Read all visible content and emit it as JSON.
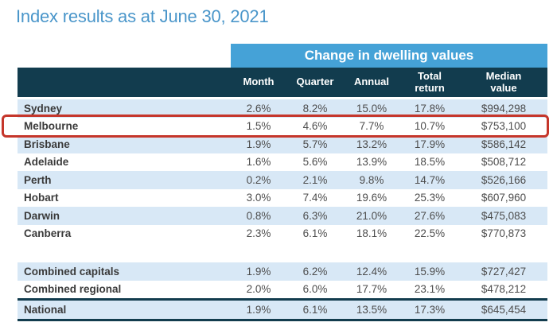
{
  "page": {
    "title": "Index results as at June 30, 2021"
  },
  "table": {
    "banner": "Change in dwelling values",
    "headers": {
      "region": "",
      "month": "Month",
      "quarter": "Quarter",
      "annual": "Annual",
      "total_return": "Total\nreturn",
      "median_value": "Median\nvalue"
    },
    "rows": [
      {
        "name": "Sydney",
        "month": "2.6%",
        "quarter": "8.2%",
        "annual": "15.0%",
        "total_return": "17.8%",
        "median_value": "$994,298"
      },
      {
        "name": "Melbourne",
        "month": "1.5%",
        "quarter": "4.6%",
        "annual": "7.7%",
        "total_return": "10.7%",
        "median_value": "$753,100"
      },
      {
        "name": "Brisbane",
        "month": "1.9%",
        "quarter": "5.7%",
        "annual": "13.2%",
        "total_return": "17.9%",
        "median_value": "$586,142"
      },
      {
        "name": "Adelaide",
        "month": "1.6%",
        "quarter": "5.6%",
        "annual": "13.9%",
        "total_return": "18.5%",
        "median_value": "$508,712"
      },
      {
        "name": "Perth",
        "month": "0.2%",
        "quarter": "2.1%",
        "annual": "9.8%",
        "total_return": "14.7%",
        "median_value": "$526,166"
      },
      {
        "name": "Hobart",
        "month": "3.0%",
        "quarter": "7.4%",
        "annual": "19.6%",
        "total_return": "25.3%",
        "median_value": "$607,960"
      },
      {
        "name": "Darwin",
        "month": "0.8%",
        "quarter": "6.3%",
        "annual": "21.0%",
        "total_return": "27.6%",
        "median_value": "$475,083"
      },
      {
        "name": "Canberra",
        "month": "2.3%",
        "quarter": "6.1%",
        "annual": "18.1%",
        "total_return": "22.5%",
        "median_value": "$770,873"
      },
      {
        "name": "Combined capitals",
        "month": "1.9%",
        "quarter": "6.2%",
        "annual": "12.4%",
        "total_return": "15.9%",
        "median_value": "$727,427"
      },
      {
        "name": "Combined regional",
        "month": "2.0%",
        "quarter": "6.0%",
        "annual": "17.7%",
        "total_return": "23.1%",
        "median_value": "$478,212"
      },
      {
        "name": "National",
        "month": "1.9%",
        "quarter": "6.1%",
        "annual": "13.5%",
        "total_return": "17.3%",
        "median_value": "$645,454"
      }
    ],
    "highlighted_row": "Melbourne"
  },
  "colors": {
    "title_blue": "#4a96ca",
    "banner_blue": "#45a2d7",
    "header_navy": "#123c4e",
    "row_alt_blue": "#d8e8f6",
    "highlight_red": "#c5362b"
  },
  "chart_data": {
    "type": "table",
    "title": "Index results as at June 30, 2021",
    "group_header": "Change in dwelling values (spans Month, Quarter, Annual, Total return, Median value)",
    "columns": [
      "Month",
      "Quarter",
      "Annual",
      "Total return",
      "Median value"
    ],
    "rows": [
      {
        "region": "Sydney",
        "month_pct": 2.6,
        "quarter_pct": 8.2,
        "annual_pct": 15.0,
        "total_return_pct": 17.8,
        "median_value": 994298
      },
      {
        "region": "Melbourne",
        "month_pct": 1.5,
        "quarter_pct": 4.6,
        "annual_pct": 7.7,
        "total_return_pct": 10.7,
        "median_value": 753100
      },
      {
        "region": "Brisbane",
        "month_pct": 1.9,
        "quarter_pct": 5.7,
        "annual_pct": 13.2,
        "total_return_pct": 17.9,
        "median_value": 586142
      },
      {
        "region": "Adelaide",
        "month_pct": 1.6,
        "quarter_pct": 5.6,
        "annual_pct": 13.9,
        "total_return_pct": 18.5,
        "median_value": 508712
      },
      {
        "region": "Perth",
        "month_pct": 0.2,
        "quarter_pct": 2.1,
        "annual_pct": 9.8,
        "total_return_pct": 14.7,
        "median_value": 526166
      },
      {
        "region": "Hobart",
        "month_pct": 3.0,
        "quarter_pct": 7.4,
        "annual_pct": 19.6,
        "total_return_pct": 25.3,
        "median_value": 607960
      },
      {
        "region": "Darwin",
        "month_pct": 0.8,
        "quarter_pct": 6.3,
        "annual_pct": 21.0,
        "total_return_pct": 27.6,
        "median_value": 475083
      },
      {
        "region": "Canberra",
        "month_pct": 2.3,
        "quarter_pct": 6.1,
        "annual_pct": 18.1,
        "total_return_pct": 22.5,
        "median_value": 770873
      },
      {
        "region": "Combined capitals",
        "month_pct": 1.9,
        "quarter_pct": 6.2,
        "annual_pct": 12.4,
        "total_return_pct": 15.9,
        "median_value": 727427
      },
      {
        "region": "Combined regional",
        "month_pct": 2.0,
        "quarter_pct": 6.0,
        "annual_pct": 17.7,
        "total_return_pct": 23.1,
        "median_value": 478212
      },
      {
        "region": "National",
        "month_pct": 1.9,
        "quarter_pct": 6.1,
        "annual_pct": 13.5,
        "total_return_pct": 17.3,
        "median_value": 645454
      }
    ],
    "highlighted_region": "Melbourne"
  }
}
